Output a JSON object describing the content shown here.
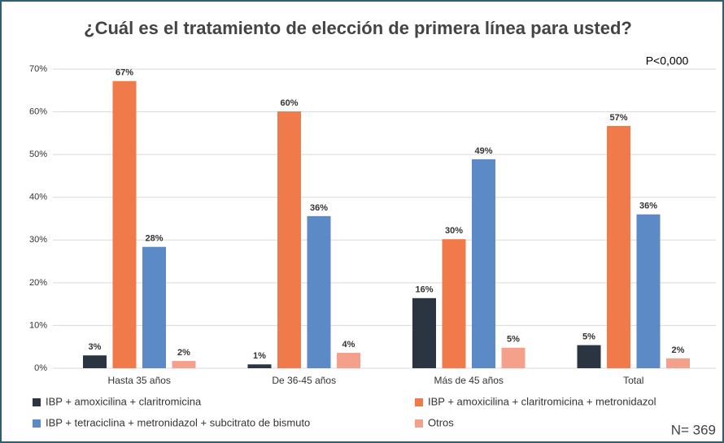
{
  "chart_data": {
    "type": "bar",
    "title": "¿Cuál es el tratamiento de elección de primera línea para usted?",
    "annotations": [
      "P<0,000",
      "N= 369"
    ],
    "categories": [
      "Hasta 35 años",
      "De 36-45 años",
      "Más de 45 años",
      "Total"
    ],
    "series": [
      {
        "name": "IBP + amoxicilina + claritromicina",
        "color": "#2b3542",
        "values": [
          3.0,
          0.9,
          16.4,
          5.4
        ],
        "value_labels": [
          "3%",
          "1%",
          "16%",
          "5%"
        ]
      },
      {
        "name": "IBP + amoxicilina + claritromicina + metronidazol",
        "color": "#f07a4a",
        "values": [
          67.2,
          60.1,
          30.2,
          56.7
        ],
        "value_labels": [
          "67%",
          "60%",
          "30%",
          "57%"
        ]
      },
      {
        "name": "IBP + tetraciclina + metronidazol + subcitrato de bismuto",
        "color": "#5b8ac6",
        "values": [
          28.4,
          35.6,
          48.9,
          36.0
        ],
        "value_labels": [
          "28%",
          "36%",
          "49%",
          "36%"
        ]
      },
      {
        "name": "Otros",
        "color": "#f4a08a",
        "values": [
          1.7,
          3.6,
          4.8,
          2.3
        ],
        "value_labels": [
          "2%",
          "4%",
          "5%",
          "2%"
        ]
      }
    ],
    "ylim": [
      0,
      70
    ],
    "yticks": [
      {
        "value": 0,
        "label": "0%"
      },
      {
        "value": 10,
        "label": "10%"
      },
      {
        "value": 20,
        "label": "20%"
      },
      {
        "value": 30,
        "label": "30%"
      },
      {
        "value": 40,
        "label": "40%"
      },
      {
        "value": 50,
        "label": "50%"
      },
      {
        "value": 60,
        "label": "60%"
      },
      {
        "value": 70,
        "label": "70%"
      }
    ],
    "grid": true
  }
}
